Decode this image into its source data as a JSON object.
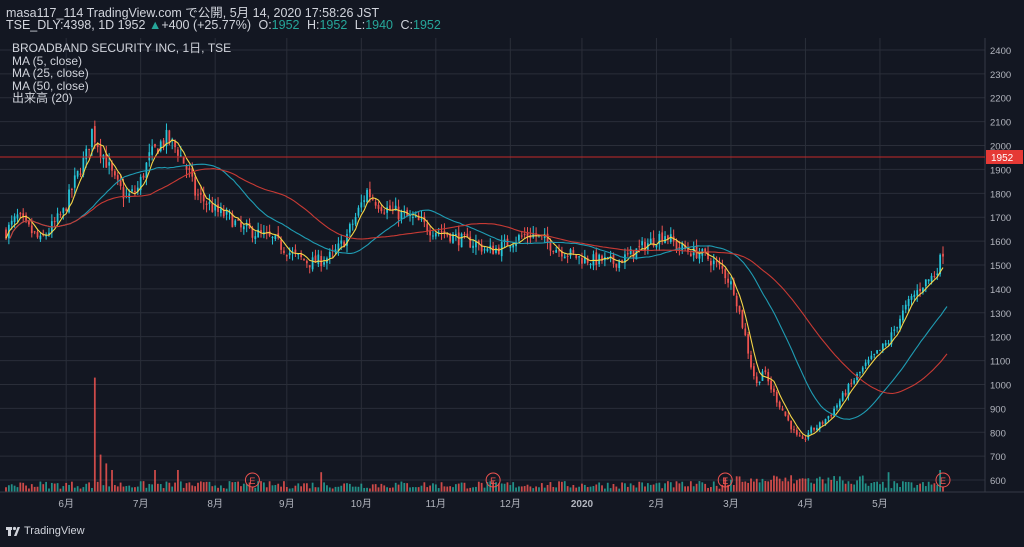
{
  "header": {
    "line1": "masa117_114 TradingView.com で公開, 5月 14, 2020 17:58:26 JST",
    "symbol": "TSE_DLY:4398, 1D",
    "last": "1952",
    "change_arrow": "▲",
    "change": "+400 (+25.77%)",
    "o_label": "O:",
    "o_value": "1952",
    "h_label": "H:",
    "h_value": "1952",
    "l_label": "L:",
    "l_value": "1940",
    "c_label": "C:",
    "c_value": "1952"
  },
  "legend": {
    "title": "BROADBAND SECURITY INC, 1日, TSE",
    "ma5": "MA (5, close)",
    "ma25": "MA (25, close)",
    "ma50": "MA (50, close)",
    "volume": "出来高 (20)"
  },
  "brand": "TradingView",
  "colors": {
    "background": "#131722",
    "up": "#26c6da",
    "down": "#ef5350",
    "vol_up": "#26a69a",
    "vol_down": "#ef5350",
    "ma5": "#f5d547",
    "ma25": "#1f9cb3",
    "ma50": "#c83a34",
    "price_line": "#c62828"
  },
  "chart_data": {
    "type": "candlestick",
    "ylim": [
      550,
      2450
    ],
    "y_ticks": [
      "2400",
      "2300",
      "2200",
      "2100",
      "2000",
      "1900",
      "1800",
      "1700",
      "1600",
      "1500",
      "1400",
      "1300",
      "1200",
      "1100",
      "1000",
      "900",
      "800",
      "700",
      "600"
    ],
    "x_labels": [
      "6月",
      "7月",
      "8月",
      "9月",
      "10月",
      "11月",
      "12月",
      "2020",
      "2月",
      "3月",
      "4月",
      "5月"
    ],
    "last_price": 1952,
    "last_price_label": "1952",
    "earnings_marker": "E",
    "anchors": [
      [
        0,
        1640
      ],
      [
        4,
        1700
      ],
      [
        8,
        1650
      ],
      [
        12,
        1600
      ],
      [
        16,
        1660
      ],
      [
        20,
        1720
      ],
      [
        24,
        1850
      ],
      [
        28,
        1960
      ],
      [
        30,
        2060
      ],
      [
        34,
        1960
      ],
      [
        38,
        1850
      ],
      [
        42,
        1780
      ],
      [
        46,
        1820
      ],
      [
        50,
        1950
      ],
      [
        54,
        2010
      ],
      [
        56,
        2030
      ],
      [
        60,
        1980
      ],
      [
        64,
        1880
      ],
      [
        66,
        1800
      ],
      [
        70,
        1760
      ],
      [
        74,
        1720
      ],
      [
        78,
        1700
      ],
      [
        82,
        1650
      ],
      [
        86,
        1640
      ],
      [
        90,
        1620
      ],
      [
        94,
        1600
      ],
      [
        98,
        1560
      ],
      [
        102,
        1530
      ],
      [
        106,
        1510
      ],
      [
        110,
        1520
      ],
      [
        114,
        1540
      ],
      [
        118,
        1600
      ],
      [
        122,
        1700
      ],
      [
        126,
        1810
      ],
      [
        128,
        1780
      ],
      [
        132,
        1740
      ],
      [
        136,
        1720
      ],
      [
        140,
        1700
      ],
      [
        144,
        1680
      ],
      [
        148,
        1650
      ],
      [
        152,
        1640
      ],
      [
        156,
        1620
      ],
      [
        160,
        1600
      ],
      [
        164,
        1590
      ],
      [
        168,
        1560
      ],
      [
        172,
        1570
      ],
      [
        176,
        1600
      ],
      [
        180,
        1620
      ],
      [
        184,
        1630
      ],
      [
        188,
        1600
      ],
      [
        192,
        1570
      ],
      [
        196,
        1550
      ],
      [
        200,
        1530
      ],
      [
        204,
        1520
      ],
      [
        208,
        1520
      ],
      [
        212,
        1510
      ],
      [
        216,
        1530
      ],
      [
        220,
        1560
      ],
      [
        224,
        1590
      ],
      [
        228,
        1620
      ],
      [
        230,
        1630
      ],
      [
        234,
        1580
      ],
      [
        238,
        1560
      ],
      [
        242,
        1550
      ],
      [
        246,
        1520
      ],
      [
        250,
        1480
      ],
      [
        254,
        1400
      ],
      [
        256,
        1300
      ],
      [
        258,
        1200
      ],
      [
        260,
        1080
      ],
      [
        262,
        1000
      ],
      [
        264,
        1060
      ],
      [
        268,
        960
      ],
      [
        272,
        870
      ],
      [
        276,
        780
      ],
      [
        278,
        760
      ],
      [
        280,
        800
      ],
      [
        284,
        830
      ],
      [
        288,
        880
      ],
      [
        292,
        950
      ],
      [
        296,
        1020
      ],
      [
        300,
        1080
      ],
      [
        304,
        1130
      ],
      [
        308,
        1180
      ],
      [
        312,
        1280
      ],
      [
        316,
        1360
      ],
      [
        320,
        1420
      ],
      [
        324,
        1460
      ],
      [
        326,
        1520
      ],
      [
        327,
        1560
      ]
    ],
    "ma_windows": [
      5,
      25,
      50
    ],
    "series": [
      {
        "name": "MA (5, close)",
        "key": "ma5"
      },
      {
        "name": "MA (25, close)",
        "key": "ma25"
      },
      {
        "name": "MA (50, close)",
        "key": "ma50"
      },
      {
        "name": "出来高 (20)",
        "key": "volume"
      }
    ],
    "volume_spikes": [
      [
        31,
        5.2
      ],
      [
        33,
        1.7
      ],
      [
        35,
        1.3
      ],
      [
        37,
        1.0
      ],
      [
        52,
        1.0
      ],
      [
        60,
        1.0
      ],
      [
        110,
        0.9
      ],
      [
        262,
        1.0
      ],
      [
        308,
        0.9
      ],
      [
        326,
        1.0
      ]
    ],
    "earnings_bars": [
      86,
      170,
      251,
      330
    ]
  }
}
